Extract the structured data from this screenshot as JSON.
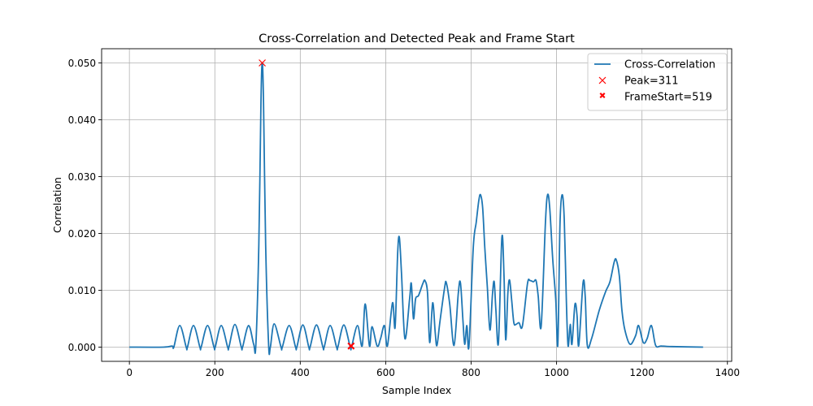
{
  "chart_data": {
    "type": "line",
    "title": "Cross-Correlation and Detected Peak and Frame Start",
    "xlabel": "Sample Index",
    "ylabel": "Correlation",
    "xlim": [
      -65,
      1410
    ],
    "ylim": [
      -0.0025,
      0.0525
    ],
    "x_ticks": [
      0,
      200,
      400,
      600,
      800,
      1000,
      1200,
      1400
    ],
    "y_ticks": [
      0.0,
      0.01,
      0.02,
      0.03,
      0.04,
      0.05
    ],
    "x_tick_labels": [
      "0",
      "200",
      "400",
      "600",
      "800",
      "1000",
      "1200",
      "1400"
    ],
    "y_tick_labels": [
      "0.000",
      "0.010",
      "0.020",
      "0.030",
      "0.040",
      "0.050"
    ],
    "grid": true,
    "legend_position": "top-right",
    "series": [
      {
        "name": "Cross-Correlation",
        "color": "#1f77b4",
        "style": "line",
        "points": [
          [
            0,
            0.0
          ],
          [
            80,
            0.0
          ],
          [
            100,
            0.0002
          ],
          [
            104,
            0.0
          ],
          [
            118,
            0.0038
          ],
          [
            133,
            0.0
          ],
          [
            136,
            0.0
          ],
          [
            150,
            0.0038
          ],
          [
            165,
            0.0
          ],
          [
            168,
            0.0
          ],
          [
            183,
            0.0038
          ],
          [
            198,
            0.0
          ],
          [
            201,
            0.0
          ],
          [
            215,
            0.0038
          ],
          [
            230,
            0.0
          ],
          [
            233,
            0.0
          ],
          [
            247,
            0.004
          ],
          [
            262,
            0.0
          ],
          [
            265,
            0.0
          ],
          [
            279,
            0.0038
          ],
          [
            291,
            0.0005
          ],
          [
            296,
            0.0003
          ],
          [
            303,
            0.018
          ],
          [
            308,
            0.043
          ],
          [
            311,
            0.05
          ],
          [
            314,
            0.043
          ],
          [
            319,
            0.018
          ],
          [
            326,
            0.0003
          ],
          [
            330,
            0.0
          ],
          [
            339,
            0.0041
          ],
          [
            355,
            0.0
          ],
          [
            358,
            0.0
          ],
          [
            374,
            0.0038
          ],
          [
            389,
            0.0
          ],
          [
            392,
            0.0
          ],
          [
            406,
            0.0039
          ],
          [
            420,
            0.0
          ],
          [
            423,
            0.0
          ],
          [
            438,
            0.0039
          ],
          [
            453,
            0.0
          ],
          [
            456,
            0.0
          ],
          [
            470,
            0.0038
          ],
          [
            485,
            0.0
          ],
          [
            488,
            0.0
          ],
          [
            502,
            0.0039
          ],
          [
            517,
            0.0
          ],
          [
            520,
            0.0
          ],
          [
            534,
            0.0038
          ],
          [
            545,
            0.0002
          ],
          [
            552,
            0.0076
          ],
          [
            562,
            0.0002
          ],
          [
            568,
            0.0036
          ],
          [
            580,
            0.0002
          ],
          [
            588,
            0.0015
          ],
          [
            597,
            0.0038
          ],
          [
            604,
            0.0002
          ],
          [
            616,
            0.0078
          ],
          [
            622,
            0.0035
          ],
          [
            628,
            0.0165
          ],
          [
            632,
            0.0193
          ],
          [
            637,
            0.013
          ],
          [
            645,
            0.0015
          ],
          [
            656,
            0.0085
          ],
          [
            660,
            0.0112
          ],
          [
            665,
            0.005
          ],
          [
            670,
            0.0085
          ],
          [
            677,
            0.0091
          ],
          [
            687,
            0.0112
          ],
          [
            692,
            0.0117
          ],
          [
            698,
            0.0095
          ],
          [
            703,
            0.0008
          ],
          [
            710,
            0.0078
          ],
          [
            716,
            0.0025
          ],
          [
            720,
            0.0003
          ],
          [
            727,
            0.0045
          ],
          [
            738,
            0.0105
          ],
          [
            742,
            0.0113
          ],
          [
            750,
            0.0075
          ],
          [
            760,
            0.0003
          ],
          [
            770,
            0.0095
          ],
          [
            775,
            0.0113
          ],
          [
            781,
            0.0045
          ],
          [
            785,
            0.0005
          ],
          [
            790,
            0.0038
          ],
          [
            795,
            0.0002
          ],
          [
            805,
            0.0175
          ],
          [
            812,
            0.022
          ],
          [
            818,
            0.0258
          ],
          [
            822,
            0.0268
          ],
          [
            827,
            0.0245
          ],
          [
            832,
            0.0175
          ],
          [
            838,
            0.0105
          ],
          [
            844,
            0.003
          ],
          [
            850,
            0.0093
          ],
          [
            854,
            0.0115
          ],
          [
            858,
            0.0065
          ],
          [
            864,
            0.0008
          ],
          [
            872,
            0.0193
          ],
          [
            877,
            0.0125
          ],
          [
            881,
            0.0013
          ],
          [
            886,
            0.0095
          ],
          [
            890,
            0.0118
          ],
          [
            895,
            0.0082
          ],
          [
            900,
            0.0043
          ],
          [
            905,
            0.004
          ],
          [
            912,
            0.0043
          ],
          [
            920,
            0.0037
          ],
          [
            932,
            0.0112
          ],
          [
            938,
            0.0117
          ],
          [
            946,
            0.0115
          ],
          [
            952,
            0.0117
          ],
          [
            957,
            0.009
          ],
          [
            964,
            0.0037
          ],
          [
            974,
            0.022
          ],
          [
            979,
            0.0268
          ],
          [
            984,
            0.0245
          ],
          [
            991,
            0.0155
          ],
          [
            998,
            0.0085
          ],
          [
            1003,
            0.0005
          ],
          [
            1008,
            0.0215
          ],
          [
            1013,
            0.0268
          ],
          [
            1018,
            0.0225
          ],
          [
            1023,
            0.008
          ],
          [
            1027,
            0.0002
          ],
          [
            1032,
            0.004
          ],
          [
            1036,
            0.0005
          ],
          [
            1043,
            0.0075
          ],
          [
            1048,
            0.0055
          ],
          [
            1052,
            0.0003
          ],
          [
            1062,
            0.0113
          ],
          [
            1067,
            0.009
          ],
          [
            1072,
            0.0003
          ],
          [
            1082,
            0.0015
          ],
          [
            1100,
            0.0065
          ],
          [
            1115,
            0.0098
          ],
          [
            1125,
            0.0115
          ],
          [
            1135,
            0.015
          ],
          [
            1140,
            0.0153
          ],
          [
            1147,
            0.0125
          ],
          [
            1153,
            0.0065
          ],
          [
            1160,
            0.003
          ],
          [
            1172,
            0.0005
          ],
          [
            1185,
            0.002
          ],
          [
            1192,
            0.0038
          ],
          [
            1203,
            0.0008
          ],
          [
            1212,
            0.0015
          ],
          [
            1222,
            0.0038
          ],
          [
            1232,
            0.0003
          ],
          [
            1245,
            0.0002
          ],
          [
            1270,
            0.0001
          ],
          [
            1343,
            0.0
          ]
        ]
      },
      {
        "name": "Peak=311",
        "color": "#ff0000",
        "style": "x-marker",
        "points": [
          [
            311,
            0.05
          ]
        ]
      },
      {
        "name": "FrameStart=519",
        "color": "#ff0000",
        "style": "X-marker",
        "points": [
          [
            519,
            0.0002
          ]
        ]
      }
    ]
  }
}
